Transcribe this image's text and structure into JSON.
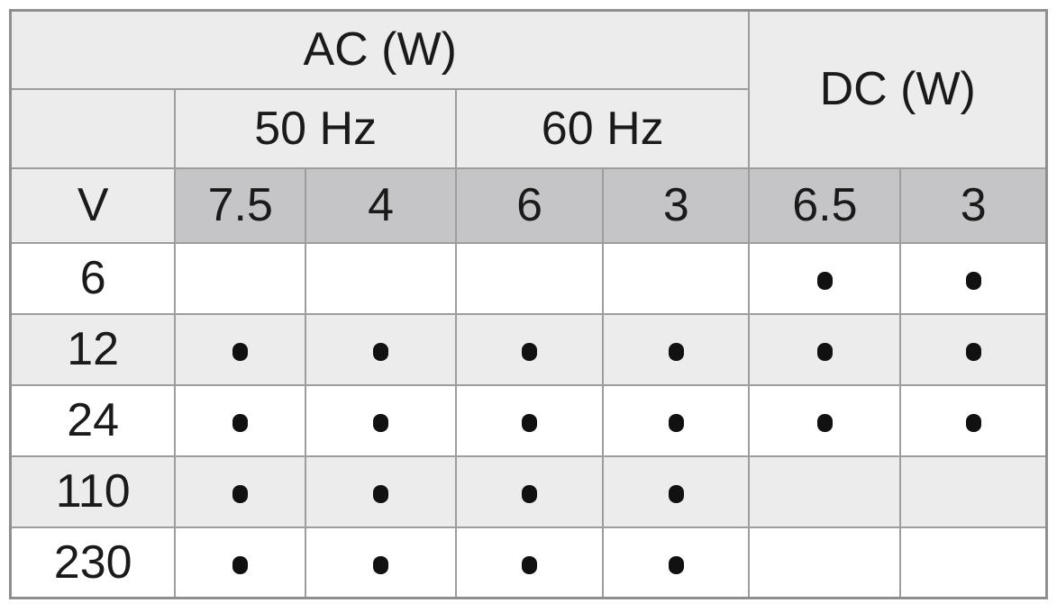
{
  "table": {
    "header": {
      "ac_label": "AC (W)",
      "dc_label": "DC (W)",
      "freq_50": "50 Hz",
      "freq_60": "60 Hz",
      "voltage_unit_label": "V",
      "wattages": [
        "7.5",
        "4",
        "6",
        "3",
        "6.5",
        "3"
      ]
    },
    "rows": [
      {
        "v": "6",
        "dots": [
          0,
          0,
          0,
          0,
          1,
          1
        ]
      },
      {
        "v": "12",
        "dots": [
          1,
          1,
          1,
          1,
          1,
          1
        ]
      },
      {
        "v": "24",
        "dots": [
          1,
          1,
          1,
          1,
          1,
          1
        ]
      },
      {
        "v": "110",
        "dots": [
          1,
          1,
          1,
          1,
          0,
          0
        ]
      },
      {
        "v": "230",
        "dots": [
          1,
          1,
          1,
          1,
          0,
          0
        ]
      }
    ],
    "colors": {
      "header_bg": "#ececec",
      "wattage_bg": "#c5c5c7",
      "row_bg": "#ffffff",
      "row_alt_bg": "#ececec",
      "border": "#9d9d9d",
      "outer_border": "#8e8e8e",
      "text": "#1a1a1a",
      "dot": "#111111"
    }
  }
}
